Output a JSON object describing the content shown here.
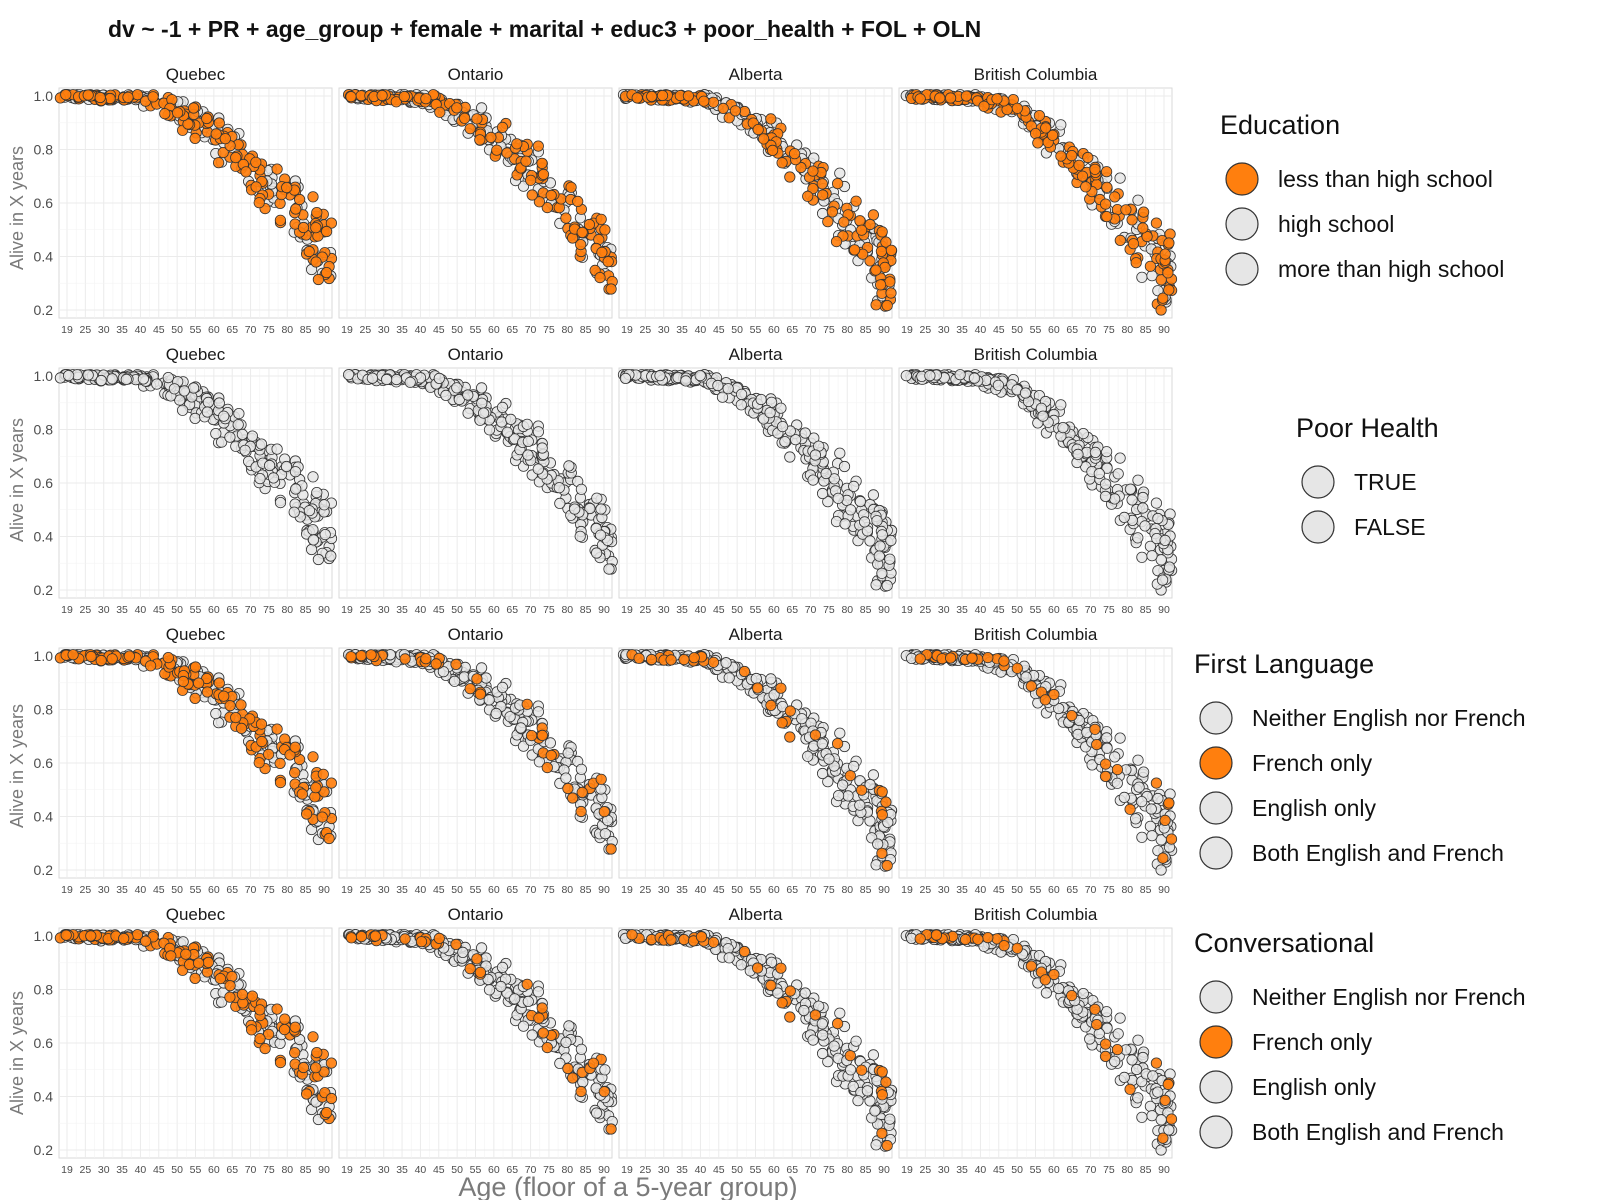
{
  "colors": {
    "highlight": "#FF7F0E",
    "neutral": "#E6E6E6",
    "stroke": "#333333",
    "grid": "#EBEBEB",
    "panel_border": "#D9D9D9"
  },
  "chart_data": {
    "title": "dv ~ -1 + PR + age_group + female + marital + educ3 + poor_health + FOL + OLN",
    "type": "scatter",
    "xlabel": "Age (floor of a 5-year group)",
    "ylabel": "Alive in X years",
    "x_ticks": [
      "19",
      "25",
      "30",
      "35",
      "40",
      "45",
      "50",
      "55",
      "60",
      "65",
      "70",
      "75",
      "80",
      "85",
      "90"
    ],
    "y_ticks": [
      1.0,
      0.8,
      0.6,
      0.4,
      0.2
    ],
    "ylim": [
      0.17,
      1.03
    ],
    "facets": [
      "Quebec",
      "Ontario",
      "Alberta",
      "British Columbia"
    ],
    "rows": [
      {
        "legend_title": "Education",
        "categories": [
          {
            "label": "less than high school",
            "color": "#FF7F0E"
          },
          {
            "label": "high school",
            "color": "#E6E6E6"
          },
          {
            "label": "more than high school",
            "color": "#E6E6E6"
          }
        ]
      },
      {
        "legend_title": "Poor Health",
        "categories": [
          {
            "label": "TRUE",
            "color": "#E6E6E6"
          },
          {
            "label": "FALSE",
            "color": "#E6E6E6"
          }
        ]
      },
      {
        "legend_title": "First Language",
        "categories": [
          {
            "label": "Neither English nor French",
            "color": "#E6E6E6"
          },
          {
            "label": "French only",
            "color": "#FF7F0E"
          },
          {
            "label": "English only",
            "color": "#E6E6E6"
          },
          {
            "label": "Both English and French",
            "color": "#E6E6E6"
          }
        ]
      },
      {
        "legend_title": "Conversational",
        "categories": [
          {
            "label": "Neither English nor French",
            "color": "#E6E6E6"
          },
          {
            "label": "French only",
            "color": "#FF7F0E"
          },
          {
            "label": "English only",
            "color": "#E6E6E6"
          },
          {
            "label": "Both English and French",
            "color": "#E6E6E6"
          }
        ]
      }
    ],
    "points_per_panel": 300,
    "highlight_share": [
      {
        "Quebec": 0.5,
        "Ontario": 0.45,
        "Alberta": 0.4,
        "British Columbia": 0.45
      },
      {
        "Quebec": 0,
        "Ontario": 0,
        "Alberta": 0,
        "British Columbia": 0
      },
      {
        "Quebec": 0.45,
        "Ontario": 0.12,
        "Alberta": 0.1,
        "British Columbia": 0.12
      },
      {
        "Quebec": 0.4,
        "Ontario": 0.12,
        "Alberta": 0.1,
        "British Columbia": 0.12
      }
    ]
  }
}
